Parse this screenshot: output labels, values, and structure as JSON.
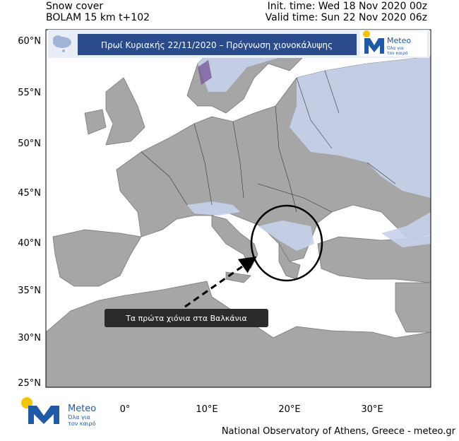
{
  "header": {
    "left": [
      "Snow cover",
      "BOLAM 15 km t+102"
    ],
    "right": [
      "Init. time: Wed 18 Nov 2020 00z",
      "Valid time: Sun 22 Nov 2020 06z"
    ]
  },
  "banner": {
    "title": "Πρωί Κυριακής 22/11/2020 – Πρόγνωση χιονοκάλυψης"
  },
  "logo": {
    "name": "Meteo",
    "tagline": [
      "Όλα για",
      "τον καιρό"
    ]
  },
  "axes": {
    "lat_labels": [
      "60°N",
      "55°N",
      "50°N",
      "45°N",
      "40°N",
      "35°N",
      "30°N",
      "25°N"
    ],
    "lon_labels": [
      "0°",
      "10°E",
      "20°E",
      "30°E"
    ]
  },
  "annotation": "Τα πρώτα χιόνια στα Βαλκάνια",
  "footer": "National Observatory of Athens, Greece - meteo.gr"
}
